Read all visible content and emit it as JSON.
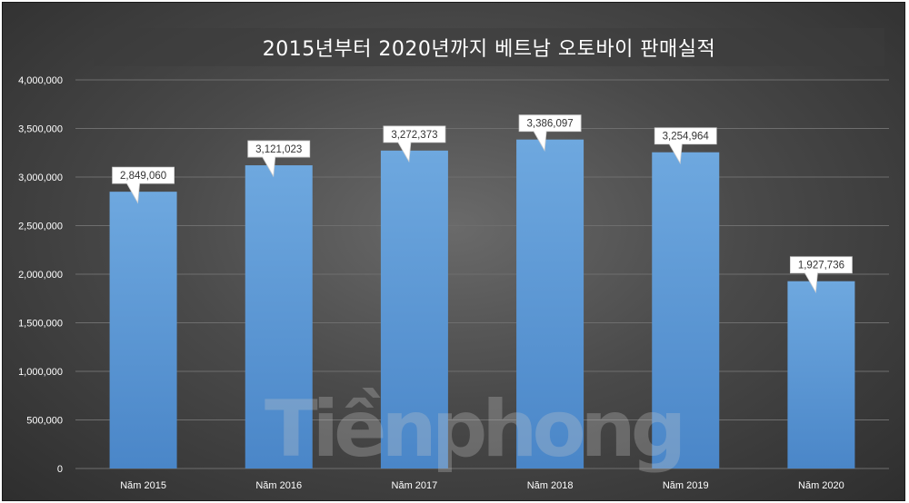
{
  "chart_data": {
    "type": "bar",
    "title": "2015년부터 2020년까지 베트남 오토바이 판매실적",
    "xlabel": "",
    "ylabel": "",
    "categories": [
      "Năm 2015",
      "Năm 2016",
      "Năm 2017",
      "Năm 2018",
      "Năm 2019",
      "Năm 2020"
    ],
    "values": [
      2849060,
      3121023,
      3272373,
      3386097,
      3254964,
      1927736
    ],
    "value_labels": [
      "2,849,060",
      "3,121,023",
      "3,272,373",
      "3,386,097",
      "3,254,964",
      "1,927,736"
    ],
    "ylim": [
      0,
      4000000
    ],
    "yticks": [
      0,
      500000,
      1000000,
      1500000,
      2000000,
      2500000,
      3000000,
      3500000,
      4000000
    ],
    "ytick_labels": [
      "0",
      "500,000",
      "1,000,000",
      "1,500,000",
      "2,000,000",
      "2,500,000",
      "3,000,000",
      "3,500,000",
      "4,000,000"
    ],
    "grid": true,
    "legend": "none",
    "bar_color": "#5b9bd5"
  },
  "watermark": {
    "text": "Tiềnphong"
  }
}
